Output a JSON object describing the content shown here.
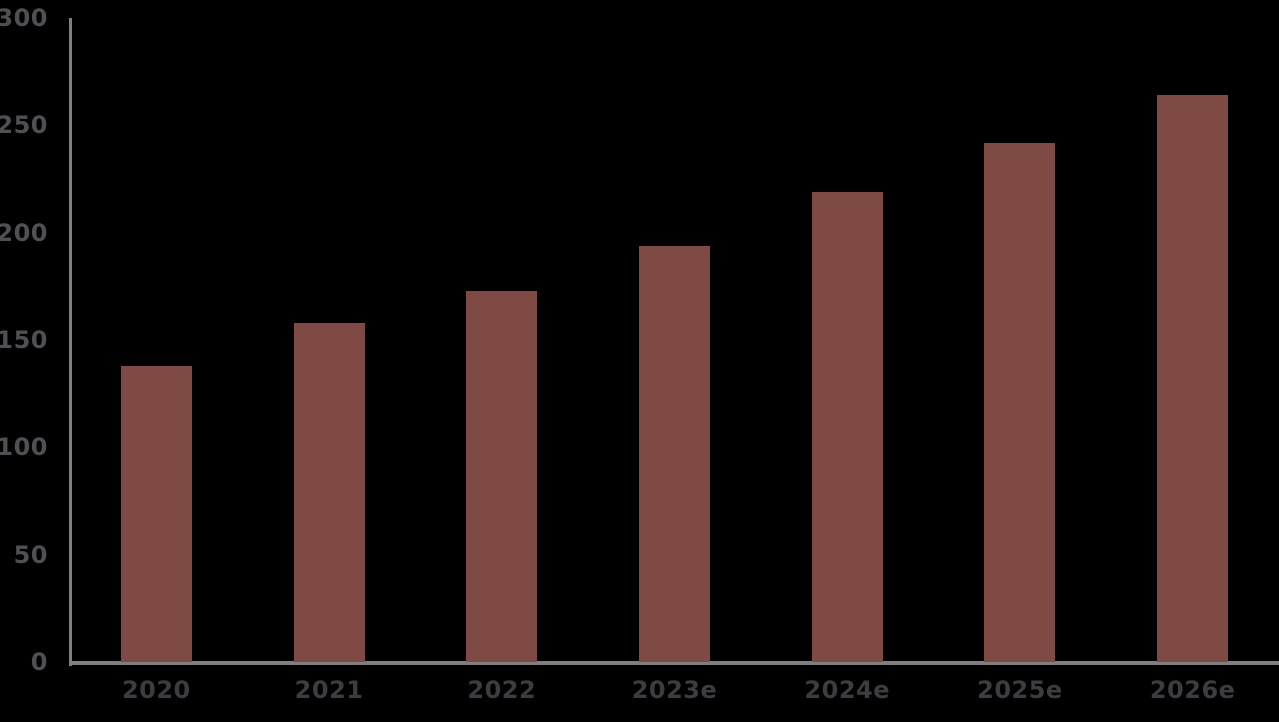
{
  "chart_data": {
    "type": "bar",
    "categories": [
      "2020",
      "2021",
      "2022",
      "2023e",
      "2024e",
      "2025e",
      "2026e"
    ],
    "values": [
      138,
      158,
      173,
      194,
      219,
      242,
      264
    ],
    "title": "",
    "xlabel": "",
    "ylabel": "",
    "ylim": [
      0,
      300
    ],
    "yticks": [
      0,
      50,
      100,
      150,
      200,
      250,
      300
    ],
    "grid": false,
    "legend": "none",
    "colors": {
      "background": "#000000",
      "bar": "#7E4A43",
      "axis_line": "#7F7F7F",
      "y_tick_label": "#505052",
      "x_tick_label": "#3D3D3F"
    }
  }
}
